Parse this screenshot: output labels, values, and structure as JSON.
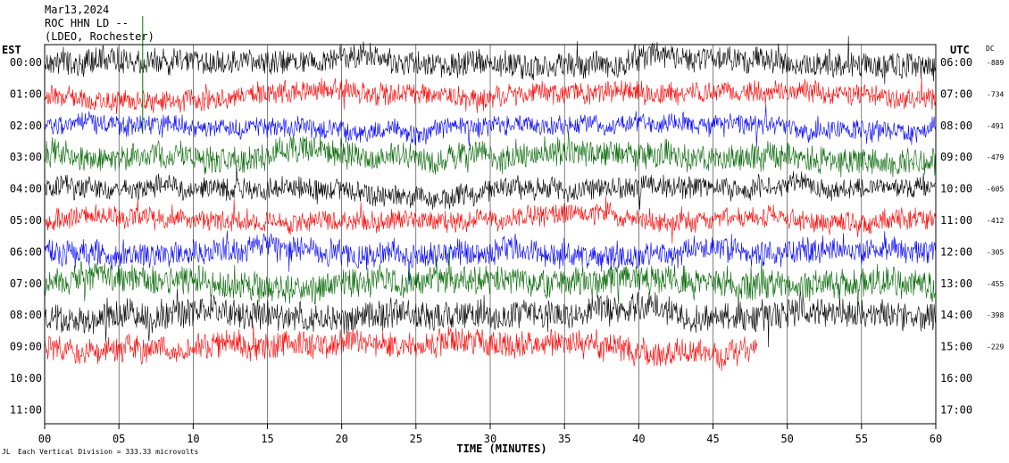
{
  "header": {
    "date": "Mar13,2024",
    "station": "ROC HHN LD --",
    "location": "(LDEO, Rochester)"
  },
  "labels": {
    "left_tz": "EST",
    "right_tz": "UTC",
    "dc": "DC",
    "xaxis": "TIME (MINUTES)",
    "footnote": "Each Vertical Division =  333.33 microvolts"
  },
  "colors": {
    "trace_cycle": [
      "#000000",
      "#ff0000",
      "#0000ff",
      "#006600"
    ],
    "minute_gridline": "#000000",
    "spike": "#008000"
  },
  "chart_data": {
    "type": "line",
    "title": "ROC HHN LD --",
    "xlabel": "TIME (MINUTES)",
    "ylabel": "",
    "xlim": [
      0,
      60
    ],
    "x_ticks": [
      "00",
      "05",
      "10",
      "15",
      "20",
      "25",
      "30",
      "35",
      "40",
      "45",
      "50",
      "55",
      "60"
    ],
    "rows": [
      {
        "est": "00:00",
        "utc": "06:00",
        "dc": "-889",
        "color": "black",
        "end_minute": 60,
        "amplitude_divisions": 0.7
      },
      {
        "est": "01:00",
        "utc": "07:00",
        "dc": "-734",
        "color": "red",
        "end_minute": 60,
        "amplitude_divisions": 0.6
      },
      {
        "est": "02:00",
        "utc": "08:00",
        "dc": "-491",
        "color": "blue",
        "end_minute": 60,
        "amplitude_divisions": 0.55
      },
      {
        "est": "03:00",
        "utc": "09:00",
        "dc": "-479",
        "color": "green",
        "end_minute": 60,
        "amplitude_divisions": 0.75
      },
      {
        "est": "04:00",
        "utc": "10:00",
        "dc": "-605",
        "color": "black",
        "end_minute": 60,
        "amplitude_divisions": 0.6
      },
      {
        "est": "05:00",
        "utc": "11:00",
        "dc": "-412",
        "color": "red",
        "end_minute": 60,
        "amplitude_divisions": 0.55
      },
      {
        "est": "06:00",
        "utc": "12:00",
        "dc": "-305",
        "color": "blue",
        "end_minute": 60,
        "amplitude_divisions": 0.7
      },
      {
        "est": "07:00",
        "utc": "13:00",
        "dc": "-455",
        "color": "green",
        "end_minute": 60,
        "amplitude_divisions": 0.8
      },
      {
        "est": "08:00",
        "utc": "14:00",
        "dc": "-398",
        "color": "black",
        "end_minute": 60,
        "amplitude_divisions": 0.8
      },
      {
        "est": "09:00",
        "utc": "15:00",
        "dc": "-229",
        "color": "red",
        "end_minute": 48,
        "amplitude_divisions": 0.75
      },
      {
        "est": "10:00",
        "utc": "16:00",
        "dc": "",
        "color": "",
        "end_minute": 0,
        "amplitude_divisions": 0
      },
      {
        "est": "11:00",
        "utc": "17:00",
        "dc": "",
        "color": "",
        "end_minute": 0,
        "amplitude_divisions": 0
      }
    ],
    "vertical_division_microvolts": 333.33,
    "grid": "vertical lines every 5 minutes",
    "legend": "none"
  }
}
